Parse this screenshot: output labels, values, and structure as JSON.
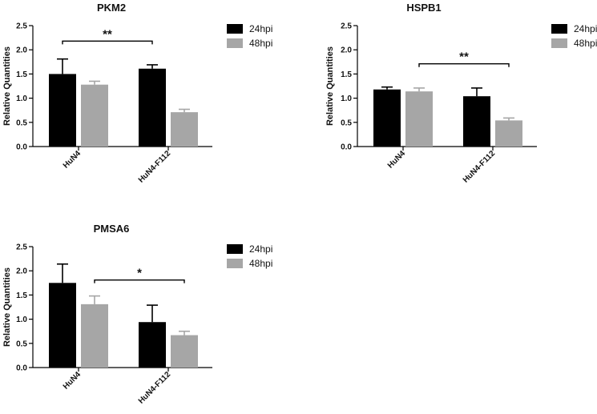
{
  "chart_data": [
    {
      "type": "bar",
      "title": "PKM2",
      "ylabel": "Relative Quantities",
      "categories": [
        "HuN4",
        "HuN4-F112"
      ],
      "ylim": [
        0,
        2.5
      ],
      "yticks": [
        "0.0",
        "0.5",
        "1.0",
        "1.5",
        "2.0",
        "2.5"
      ],
      "series": [
        {
          "name": "24hpi",
          "color": "#000000",
          "values": [
            1.5,
            1.61
          ],
          "errors": [
            0.31,
            0.08
          ]
        },
        {
          "name": "48hpi",
          "color": "#a6a6a6",
          "values": [
            1.28,
            0.71
          ],
          "errors": [
            0.07,
            0.06
          ]
        }
      ],
      "significance": {
        "label": "**",
        "from": [
          "HuN4",
          "24hpi"
        ],
        "to": [
          "HuN4-F112",
          "24hpi"
        ],
        "y": 2.18
      },
      "legend_position": "top-right"
    },
    {
      "type": "bar",
      "title": "HSPB1",
      "ylabel": "Relative Quantities",
      "categories": [
        "HuN4",
        "HuN4-F112"
      ],
      "ylim": [
        0,
        2.5
      ],
      "yticks": [
        "0.0",
        "0.5",
        "1.0",
        "1.5",
        "2.0",
        "2.5"
      ],
      "series": [
        {
          "name": "24hpi",
          "color": "#000000",
          "values": [
            1.18,
            1.04
          ],
          "errors": [
            0.05,
            0.17
          ]
        },
        {
          "name": "48hpi",
          "color": "#a6a6a6",
          "values": [
            1.14,
            0.54
          ],
          "errors": [
            0.07,
            0.05
          ]
        }
      ],
      "significance": {
        "label": "**",
        "from": [
          "HuN4",
          "48hpi"
        ],
        "to": [
          "HuN4-F112",
          "48hpi"
        ],
        "y": 1.71
      },
      "legend_position": "top-right"
    },
    {
      "type": "bar",
      "title": "PMSA6",
      "ylabel": "Relative Quantities",
      "categories": [
        "HuN4",
        "HuN4-F112"
      ],
      "ylim": [
        0,
        2.5
      ],
      "yticks": [
        "0.0",
        "0.5",
        "1.0",
        "1.5",
        "2.0",
        "2.5"
      ],
      "series": [
        {
          "name": "24hpi",
          "color": "#000000",
          "values": [
            1.75,
            0.94
          ],
          "errors": [
            0.39,
            0.35
          ]
        },
        {
          "name": "48hpi",
          "color": "#a6a6a6",
          "values": [
            1.31,
            0.67
          ],
          "errors": [
            0.17,
            0.08
          ]
        }
      ],
      "significance": {
        "label": "*",
        "from": [
          "HuN4",
          "48hpi"
        ],
        "to": [
          "HuN4-F112",
          "48hpi"
        ],
        "y": 1.81
      },
      "legend_position": "top-right"
    }
  ]
}
